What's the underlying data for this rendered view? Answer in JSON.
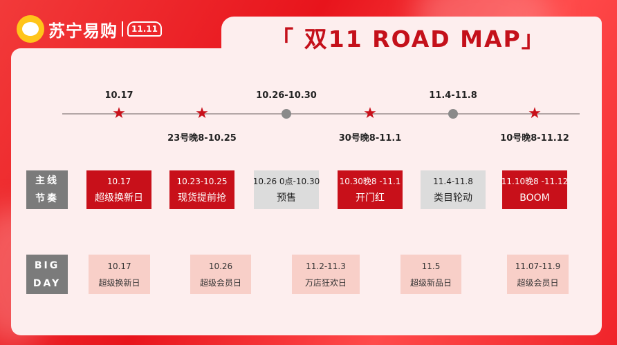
{
  "header": {
    "brand": "苏宁易购",
    "badge": "11.11",
    "title": "「 双11 ROAD MAP」"
  },
  "timeline": {
    "markers": [
      {
        "type": "star"
      },
      {
        "type": "star"
      },
      {
        "type": "dot"
      },
      {
        "type": "star"
      },
      {
        "type": "dot"
      },
      {
        "type": "star"
      }
    ],
    "top_labels": [
      "10.17",
      "10.26-10.30",
      "11.4-11.8"
    ],
    "bottom_labels": [
      "23号晚8-10.25",
      "30号晚8-11.1",
      "10号晚8-11.12"
    ]
  },
  "main_rhythm": {
    "label_line1": "主线",
    "label_line2": "节奏",
    "items": [
      {
        "date": "10.17",
        "name": "超级换新日",
        "style": "red"
      },
      {
        "date": "10.23-10.25",
        "name": "现货提前抢",
        "style": "red"
      },
      {
        "date": "10.26 0点-10.30",
        "name": "预售",
        "style": "gray"
      },
      {
        "date": "10.30晚8 -11.1",
        "name": "开门红",
        "style": "red"
      },
      {
        "date": "11.4-11.8",
        "name": "类目轮动",
        "style": "gray"
      },
      {
        "date": "11.10晚8 -11.12",
        "name": "BOOM",
        "style": "red"
      }
    ]
  },
  "big_day": {
    "label_line1": "BIG",
    "label_line2": "DAY",
    "items": [
      {
        "date": "10.17",
        "name": "超级换新日"
      },
      {
        "date": "10.26",
        "name": "超级会员日"
      },
      {
        "date": "11.2-11.3",
        "name": "万店狂欢日"
      },
      {
        "date": "11.5",
        "name": "超级新品日"
      },
      {
        "date": "11.07-11.9",
        "name": "超级会员日"
      }
    ]
  },
  "colors": {
    "accent_red": "#c8101a",
    "gray": "#7b7b7b",
    "pink": "#f8cfc8"
  }
}
